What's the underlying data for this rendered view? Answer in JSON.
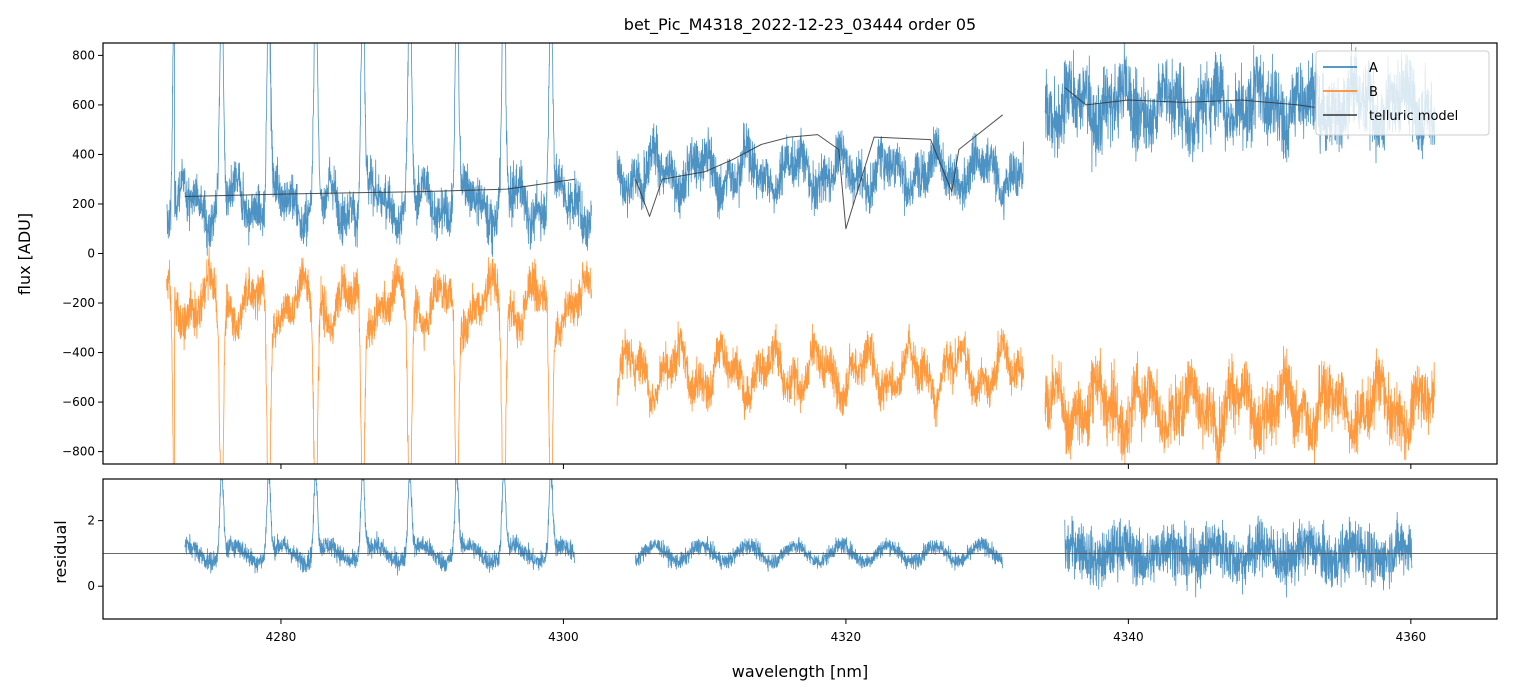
{
  "chart_data": [
    {
      "type": "line",
      "title": "bet_Pic_M4318_2022-12-23_03444  order 05",
      "xlabel": "",
      "ylabel": "flux [ADU]",
      "xlim": [
        4267.4,
        4366.1
      ],
      "ylim": [
        -850,
        850
      ],
      "yticks": [
        -800,
        -600,
        -400,
        -200,
        0,
        200,
        400,
        600,
        800
      ],
      "legend": {
        "placement": "top-right",
        "entries": [
          "A",
          "B",
          "telluric model"
        ]
      },
      "series": [
        {
          "name": "A",
          "color": "#1f77b4",
          "segments": [
            [
              4271.9,
              4302.0
            ],
            [
              4303.8,
              4332.6
            ],
            [
              4334.1,
              4361.7
            ]
          ],
          "mean_levels": [
            200,
            330,
            600
          ],
          "note": "noisy spectrum"
        },
        {
          "name": "B",
          "color": "#ff7f0e",
          "segments": [
            [
              4271.9,
              4302.0
            ],
            [
              4303.8,
              4332.6
            ],
            [
              4334.1,
              4361.7
            ]
          ],
          "mean_levels": [
            -200,
            -480,
            -620
          ]
        },
        {
          "name": "telluric model",
          "color": "#333333",
          "x": [
            4273.2,
            4280,
            4290,
            4296,
            4300.8,
            null,
            4305.1,
            4306.1,
            4307,
            4310,
            4312,
            4314,
            4316,
            4318,
            4319.5,
            4320,
            4322,
            4326,
            4327.5,
            4328,
            4331.1,
            null,
            4335.5,
            4337,
            4340,
            4344,
            4348,
            4352,
            4353.2
          ],
          "y": [
            230,
            240,
            250,
            260,
            300,
            null,
            300,
            150,
            300,
            330,
            380,
            440,
            470,
            480,
            420,
            100,
            470,
            460,
            250,
            420,
            560,
            null,
            670,
            600,
            620,
            610,
            620,
            600,
            590
          ]
        }
      ]
    },
    {
      "type": "line",
      "xlabel": "wavelength [nm]",
      "ylabel": "residual",
      "xlim": [
        4267.4,
        4366.1
      ],
      "ylim": [
        -1.0,
        3.27
      ],
      "yticks": [
        0,
        2
      ],
      "xticks": [
        4280,
        4300,
        4320,
        4340,
        4360
      ],
      "reference_line": 1,
      "series": [
        {
          "name": "residual",
          "color": "#1f77b4",
          "segments": [
            [
              4273.2,
              4300.8
            ],
            [
              4305.1,
              4331.1
            ],
            [
              4335.5,
              4360.1
            ]
          ],
          "mean": 1.0
        }
      ]
    }
  ]
}
